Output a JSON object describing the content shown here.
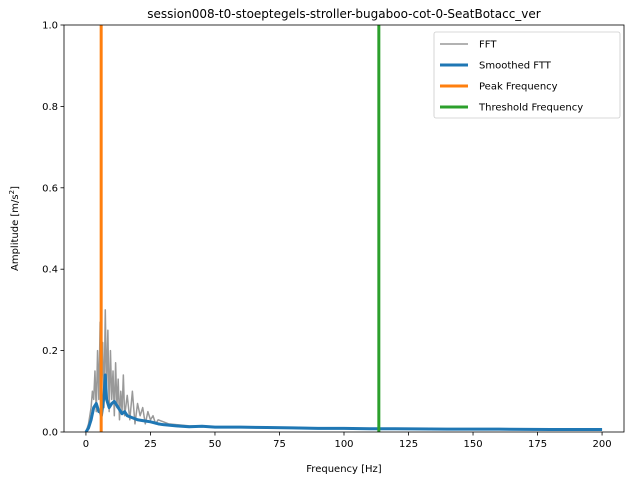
{
  "chart_data": {
    "type": "line",
    "title": "session008-t0-stoeptegels-stroller-bugaboo-cot-0-SeatBotacc_ver",
    "xlabel": "Frequency [Hz]",
    "ylabel_main": "Amplitude [m/s",
    "ylabel_sup": "2",
    "ylabel_end": "]",
    "xlim": [
      -8.5,
      208.5
    ],
    "ylim": [
      0,
      1.0
    ],
    "x_ticks": [
      0,
      25,
      50,
      75,
      100,
      125,
      150,
      175,
      200
    ],
    "y_ticks": [
      0.0,
      0.2,
      0.4,
      0.6,
      0.8,
      1.0
    ],
    "x_tick_labels": [
      "0",
      "25",
      "50",
      "75",
      "100",
      "125",
      "150",
      "175",
      "200"
    ],
    "y_tick_labels": [
      "0.0",
      "0.2",
      "0.4",
      "0.6",
      "0.8",
      "1.0"
    ],
    "grid": false,
    "legend_position": "top-right",
    "series": [
      {
        "name": "FFT",
        "color": "#999999",
        "style": "line-thin",
        "x": [
          0,
          1,
          2,
          2.5,
          3,
          3.5,
          4,
          4.5,
          5,
          5.5,
          6,
          6.5,
          7,
          7.5,
          8,
          8.5,
          9,
          9.5,
          10,
          10.5,
          11,
          11.5,
          12,
          12.5,
          13,
          13.5,
          14,
          14.5,
          15,
          16,
          17,
          18,
          19,
          20,
          21,
          22,
          23,
          24,
          25,
          26,
          27,
          28,
          30,
          32,
          35,
          40,
          45,
          50,
          60,
          70,
          80,
          90,
          100,
          110,
          120,
          140,
          160,
          180,
          200
        ],
        "y": [
          0.0,
          0.02,
          0.06,
          0.1,
          0.08,
          0.15,
          0.05,
          0.2,
          0.08,
          0.27,
          0.1,
          0.22,
          0.06,
          0.3,
          0.1,
          0.25,
          0.05,
          0.2,
          0.08,
          0.15,
          0.04,
          0.17,
          0.06,
          0.13,
          0.03,
          0.1,
          0.05,
          0.14,
          0.04,
          0.09,
          0.03,
          0.1,
          0.02,
          0.07,
          0.04,
          0.06,
          0.02,
          0.05,
          0.03,
          0.04,
          0.02,
          0.03,
          0.025,
          0.02,
          0.018,
          0.015,
          0.014,
          0.013,
          0.012,
          0.012,
          0.011,
          0.01,
          0.009,
          0.009,
          0.008,
          0.008,
          0.007,
          0.007,
          0.006
        ]
      },
      {
        "name": "Smoothed FTT",
        "color": "#1f77b4",
        "style": "line-thick",
        "x": [
          0,
          1,
          2,
          3,
          4,
          5,
          5.5,
          6,
          7,
          7.5,
          8,
          9,
          10,
          11,
          12,
          13,
          14,
          15,
          16,
          18,
          20,
          22,
          25,
          28,
          30,
          35,
          40,
          45,
          50,
          60,
          70,
          80,
          90,
          100,
          110,
          120,
          140,
          160,
          180,
          200
        ],
        "y": [
          0.0,
          0.01,
          0.03,
          0.06,
          0.07,
          0.05,
          0.05,
          0.04,
          0.09,
          0.14,
          0.08,
          0.06,
          0.07,
          0.075,
          0.065,
          0.055,
          0.045,
          0.05,
          0.04,
          0.035,
          0.03,
          0.028,
          0.025,
          0.02,
          0.018,
          0.015,
          0.013,
          0.014,
          0.012,
          0.012,
          0.011,
          0.01,
          0.009,
          0.009,
          0.008,
          0.008,
          0.007,
          0.007,
          0.006,
          0.006
        ]
      },
      {
        "name": "Peak Frequency",
        "color": "#ff7f0e",
        "style": "vline",
        "x": [
          5.9
        ]
      },
      {
        "name": "Threshold Frequency",
        "color": "#2ca02c",
        "style": "vline",
        "x": [
          113.5
        ]
      }
    ]
  }
}
